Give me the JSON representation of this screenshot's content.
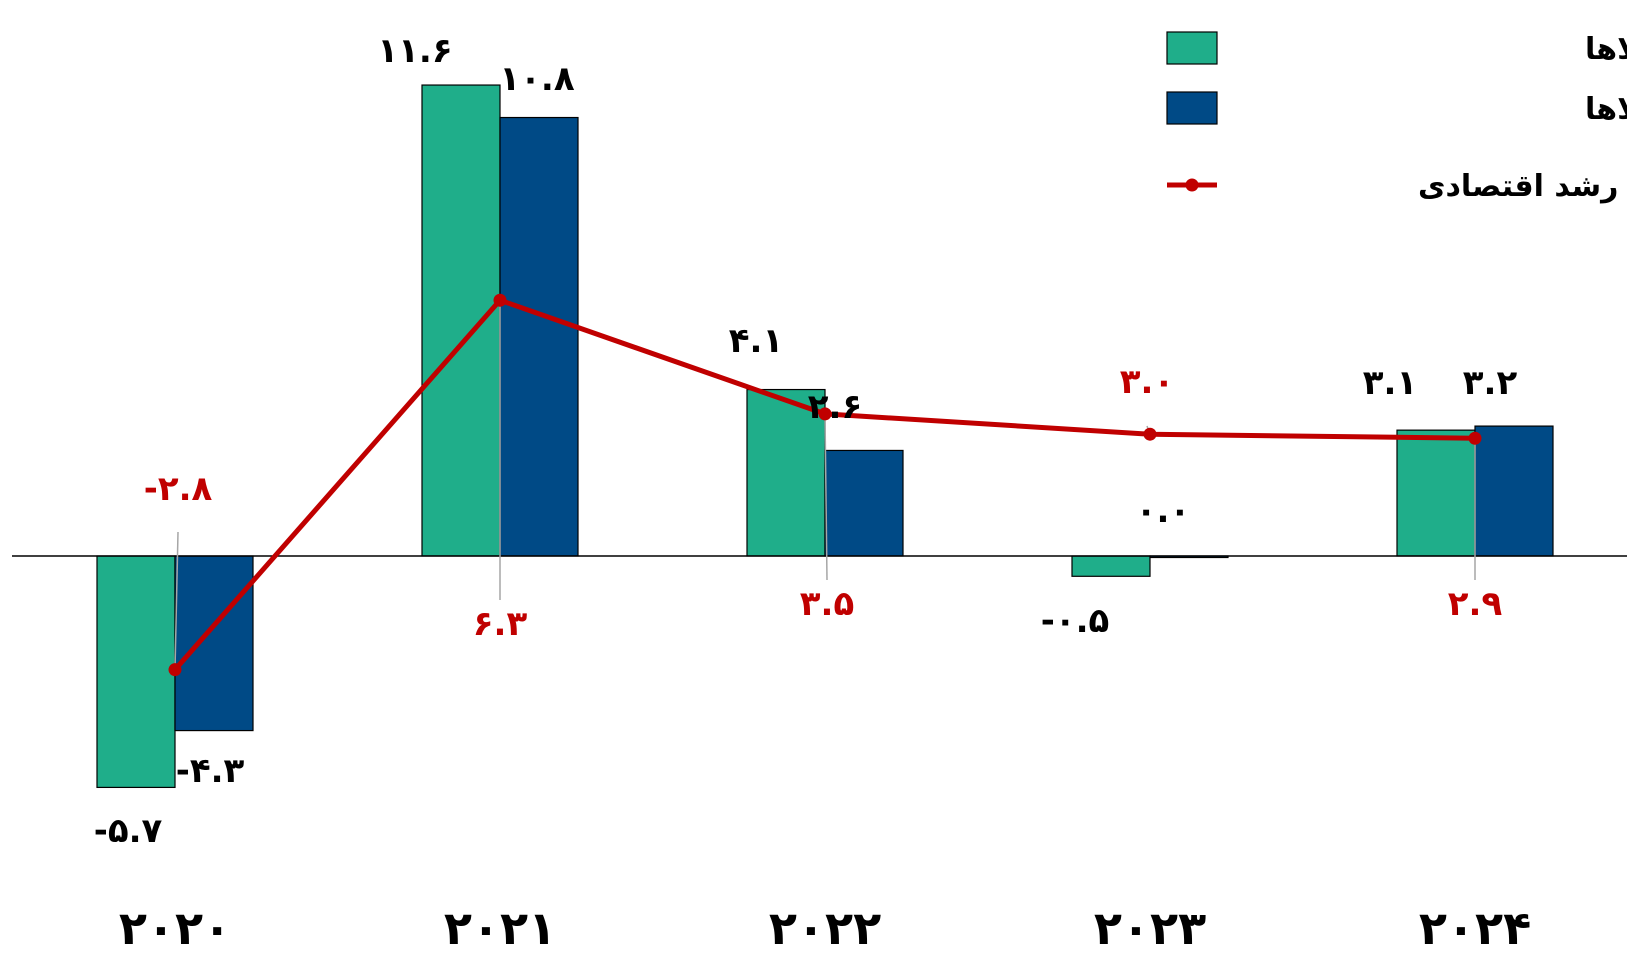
{
  "chart_data": {
    "type": "bar",
    "categories": [
      "۲۰۲۰",
      "۲۰۲۱",
      "۲۰۲۲",
      "۲۰۲۳",
      "۲۰۲۴"
    ],
    "series": [
      {
        "name": "رشد حجم واردات کالاها",
        "kind": "bar",
        "color": "#1FAE8A",
        "values": [
          -5.7,
          11.6,
          4.1,
          -0.5,
          3.1
        ],
        "labels": [
          "-۵.۷",
          "۱۱.۶",
          "۴.۱",
          "-۰.۵",
          "۳.۱"
        ]
      },
      {
        "name": "رشد حجم صادرات کالاها",
        "kind": "bar",
        "color": "#004A86",
        "values": [
          -4.3,
          10.8,
          2.6,
          0.0,
          3.2
        ],
        "labels": [
          "-۴.۳",
          "۱۰.۸",
          "۲.۶",
          "۰.۰",
          "۳.۲"
        ]
      },
      {
        "name": "رشد اقتصادی",
        "kind": "line",
        "color": "#C00000",
        "values": [
          -2.8,
          6.3,
          3.5,
          3.0,
          2.9
        ],
        "labels": [
          "-۲.۸",
          "۶.۳",
          "۳.۵",
          "۳.۰",
          "۲.۹"
        ]
      }
    ],
    "ylim": [
      -7.5,
      13.8
    ],
    "grid": false,
    "legend_position": "top-right"
  }
}
